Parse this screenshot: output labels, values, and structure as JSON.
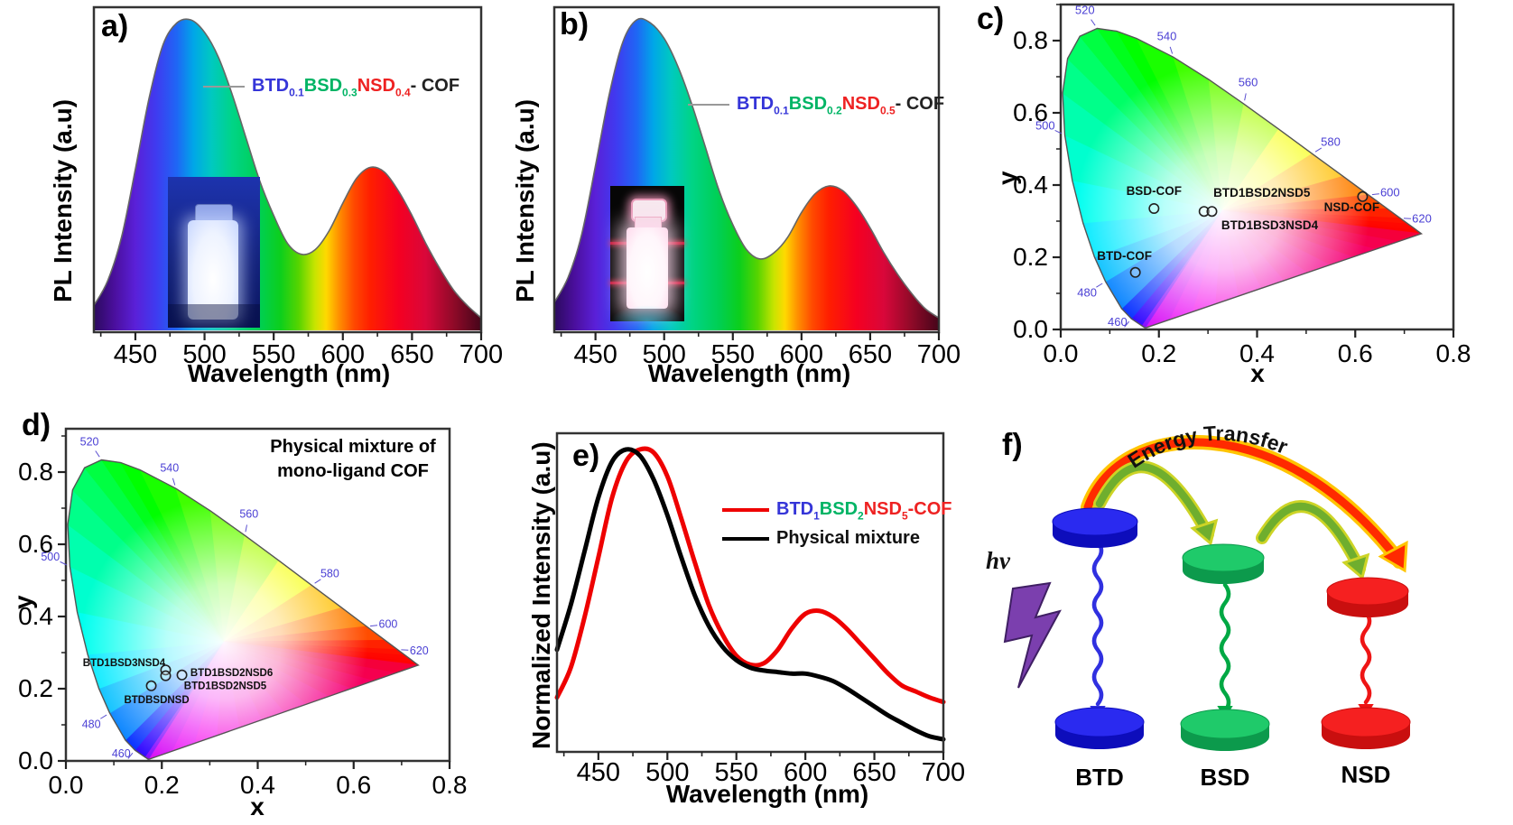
{
  "panels": {
    "a": {
      "label": "a)",
      "xlabel": "Wavelength (nm)",
      "ylabel": "PL Intensity (a.u)",
      "legend": [
        {
          "text": "BTD",
          "color": "#3535d8"
        },
        {
          "text": "0.1",
          "color": "#3535d8",
          "sub": true
        },
        {
          "text": "BSD",
          "color": "#00b465"
        },
        {
          "text": "0.3",
          "color": "#00b465",
          "sub": true
        },
        {
          "text": "NSD",
          "color": "#ee2222"
        },
        {
          "text": "0.4",
          "color": "#ee2222",
          "sub": true
        },
        {
          "text": "- COF",
          "color": "#222222"
        }
      ]
    },
    "b": {
      "label": "b)",
      "xlabel": "Wavelength (nm)",
      "ylabel": "PL Intensity (a.u)",
      "legend": [
        {
          "text": "BTD",
          "color": "#3535d8"
        },
        {
          "text": "0.1",
          "color": "#3535d8",
          "sub": true
        },
        {
          "text": "BSD",
          "color": "#00b465"
        },
        {
          "text": "0.2",
          "color": "#00b465",
          "sub": true
        },
        {
          "text": "NSD",
          "color": "#ee2222"
        },
        {
          "text": "0.5",
          "color": "#ee2222",
          "sub": true
        },
        {
          "text": "- COF",
          "color": "#222222"
        }
      ]
    },
    "c": {
      "label": "c)",
      "xlabel": "x",
      "ylabel": "y"
    },
    "d": {
      "label": "d)",
      "xlabel": "x",
      "ylabel": "y",
      "annotation_line1": "Physical mixture of",
      "annotation_line2": "mono-ligand COF"
    },
    "e": {
      "label": "e)",
      "xlabel": "Wavelength (nm)",
      "ylabel": "Normalized Intensity (a.u)",
      "legend": [
        {
          "color": "#ee0000",
          "parts": [
            {
              "text": "BTD",
              "color": "#3535d8"
            },
            {
              "text": "1",
              "color": "#3535d8",
              "sub": true
            },
            {
              "text": "BSD",
              "color": "#00b465"
            },
            {
              "text": "2",
              "color": "#00b465",
              "sub": true
            },
            {
              "text": "NSD",
              "color": "#ee2222"
            },
            {
              "text": "5",
              "color": "#ee2222",
              "sub": true
            },
            {
              "text": "-COF",
              "color": "#ee2222"
            }
          ]
        },
        {
          "color": "#000000",
          "parts": [
            {
              "text": "Physical mixture",
              "color": "#111111"
            }
          ]
        }
      ]
    },
    "f": {
      "label": "f)",
      "energy_transfer": "Energy Transfer",
      "hv": "hv",
      "units": [
        {
          "name": "BTD",
          "color": "#1a1ae0"
        },
        {
          "name": "BSD",
          "color": "#00a84e"
        },
        {
          "name": "NSD",
          "color": "#ee1111"
        }
      ]
    }
  },
  "chart_data": [
    {
      "panel": "a",
      "type": "area",
      "style": "spectral-rainbow-fill",
      "title": "",
      "xlabel": "Wavelength (nm)",
      "ylabel": "PL Intensity (a.u)",
      "xlim": [
        420,
        700
      ],
      "xticks": [
        450,
        500,
        550,
        600,
        650,
        700
      ],
      "legend": "BTD0.1BSD0.3NSD0.4- COF",
      "peaks_nm": [
        487,
        610
      ],
      "x": [
        420,
        430,
        440,
        450,
        460,
        470,
        480,
        490,
        500,
        510,
        520,
        530,
        540,
        550,
        560,
        570,
        580,
        590,
        600,
        610,
        620,
        630,
        640,
        650,
        660,
        670,
        680,
        690,
        700
      ],
      "y": [
        0.08,
        0.16,
        0.3,
        0.52,
        0.75,
        0.92,
        0.99,
        1.0,
        0.96,
        0.88,
        0.76,
        0.62,
        0.48,
        0.37,
        0.28,
        0.245,
        0.26,
        0.32,
        0.41,
        0.49,
        0.525,
        0.51,
        0.45,
        0.37,
        0.28,
        0.2,
        0.13,
        0.08,
        0.04
      ]
    },
    {
      "panel": "b",
      "type": "area",
      "style": "spectral-rainbow-fill",
      "title": "",
      "xlabel": "Wavelength (nm)",
      "ylabel": "PL Intensity (a.u)",
      "xlim": [
        420,
        700
      ],
      "xticks": [
        450,
        500,
        550,
        600,
        650,
        700
      ],
      "legend": "BTD0.1BSD0.2NSD0.5- COF",
      "peaks_nm": [
        486,
        612
      ],
      "x": [
        420,
        430,
        440,
        450,
        460,
        470,
        480,
        490,
        500,
        510,
        520,
        530,
        540,
        550,
        560,
        570,
        580,
        590,
        600,
        610,
        620,
        630,
        640,
        650,
        660,
        670,
        680,
        690,
        700
      ],
      "y": [
        0.09,
        0.17,
        0.31,
        0.53,
        0.76,
        0.93,
        1.0,
        0.99,
        0.94,
        0.85,
        0.73,
        0.59,
        0.45,
        0.34,
        0.26,
        0.23,
        0.25,
        0.3,
        0.38,
        0.44,
        0.465,
        0.45,
        0.4,
        0.33,
        0.25,
        0.18,
        0.12,
        0.07,
        0.04
      ]
    },
    {
      "panel": "c",
      "type": "scatter",
      "subtype": "cie-1931-chromaticity",
      "xlabel": "x",
      "ylabel": "y",
      "xlim": [
        0,
        0.8
      ],
      "ylim": [
        0,
        0.9
      ],
      "xticks": [
        "0.0",
        "0.2",
        "0.4",
        "0.6",
        "0.8"
      ],
      "yticks": [
        "0.0",
        "0.2",
        "0.4",
        "0.6",
        "0.8"
      ],
      "wavelength_labels": [
        520,
        540,
        560,
        580,
        600,
        620,
        500,
        480,
        460
      ],
      "points": [
        {
          "label": "BSD-COF",
          "x": 0.19,
          "y": 0.335
        },
        {
          "label": "BTD1BSD2NSD5",
          "x": 0.292,
          "y": 0.327
        },
        {
          "label": "BTD1BSD3NSD4",
          "x": 0.308,
          "y": 0.327
        },
        {
          "label": "NSD-COF",
          "x": 0.615,
          "y": 0.368
        },
        {
          "label": "BTD-COF",
          "x": 0.152,
          "y": 0.158
        }
      ]
    },
    {
      "panel": "d",
      "type": "scatter",
      "subtype": "cie-1931-chromaticity",
      "annotation": "Physical mixture of mono-ligand COF",
      "xlabel": "x",
      "ylabel": "y",
      "xlim": [
        0,
        0.8
      ],
      "ylim": [
        0,
        0.92
      ],
      "xticks": [
        "0.0",
        "0.2",
        "0.4",
        "0.6",
        "0.8"
      ],
      "yticks": [
        "0.0",
        "0.2",
        "0.4",
        "0.6",
        "0.8"
      ],
      "wavelength_labels": [
        520,
        540,
        560,
        580,
        600,
        620,
        500,
        480,
        460
      ],
      "points": [
        {
          "label": "BTD1BSD3NSD4",
          "x": 0.208,
          "y": 0.252
        },
        {
          "label": "BTD1BSD2NSD6",
          "x": 0.242,
          "y": 0.238
        },
        {
          "label": "BTD1BSD2NSD5",
          "x": 0.208,
          "y": 0.236
        },
        {
          "label": "BTDBSDNSD",
          "x": 0.178,
          "y": 0.208
        }
      ]
    },
    {
      "panel": "e",
      "type": "line",
      "xlabel": "Wavelength (nm)",
      "ylabel": "Normalized Intensity (a.u)",
      "xlim": [
        420,
        700
      ],
      "xticks": [
        450,
        500,
        550,
        600,
        650,
        700
      ],
      "x": [
        420,
        430,
        440,
        450,
        460,
        470,
        480,
        490,
        500,
        510,
        520,
        530,
        540,
        550,
        560,
        570,
        580,
        590,
        600,
        610,
        620,
        630,
        640,
        650,
        660,
        670,
        680,
        690,
        700
      ],
      "series": [
        {
          "name": "BTD1BSD2NSD5-COF",
          "color": "#ee0000",
          "y": [
            0.17,
            0.27,
            0.44,
            0.64,
            0.84,
            0.96,
            1.0,
            0.99,
            0.91,
            0.77,
            0.62,
            0.48,
            0.38,
            0.31,
            0.28,
            0.285,
            0.33,
            0.4,
            0.45,
            0.46,
            0.44,
            0.4,
            0.35,
            0.3,
            0.25,
            0.21,
            0.19,
            0.17,
            0.155
          ]
        },
        {
          "name": "Physical mixture",
          "color": "#000000",
          "y": [
            0.33,
            0.48,
            0.66,
            0.84,
            0.96,
            1.0,
            0.98,
            0.9,
            0.78,
            0.64,
            0.51,
            0.41,
            0.34,
            0.295,
            0.27,
            0.26,
            0.255,
            0.25,
            0.25,
            0.24,
            0.225,
            0.2,
            0.17,
            0.14,
            0.11,
            0.085,
            0.06,
            0.04,
            0.03
          ]
        }
      ]
    },
    {
      "panel": "f",
      "type": "diagram",
      "title": "Energy Transfer",
      "excitation": "hv",
      "units": [
        "BTD",
        "BSD",
        "NSD"
      ],
      "arrows": [
        {
          "from": "BTD",
          "to": "BSD",
          "type": "energy-transfer"
        },
        {
          "from": "BSD",
          "to": "NSD",
          "type": "energy-transfer"
        },
        {
          "from": "BTD",
          "to": "NSD",
          "type": "energy-transfer"
        },
        {
          "from": "BTD",
          "to": "BTD",
          "type": "emission"
        },
        {
          "from": "BSD",
          "to": "BSD",
          "type": "emission"
        },
        {
          "from": "NSD",
          "to": "NSD",
          "type": "emission"
        }
      ]
    }
  ]
}
